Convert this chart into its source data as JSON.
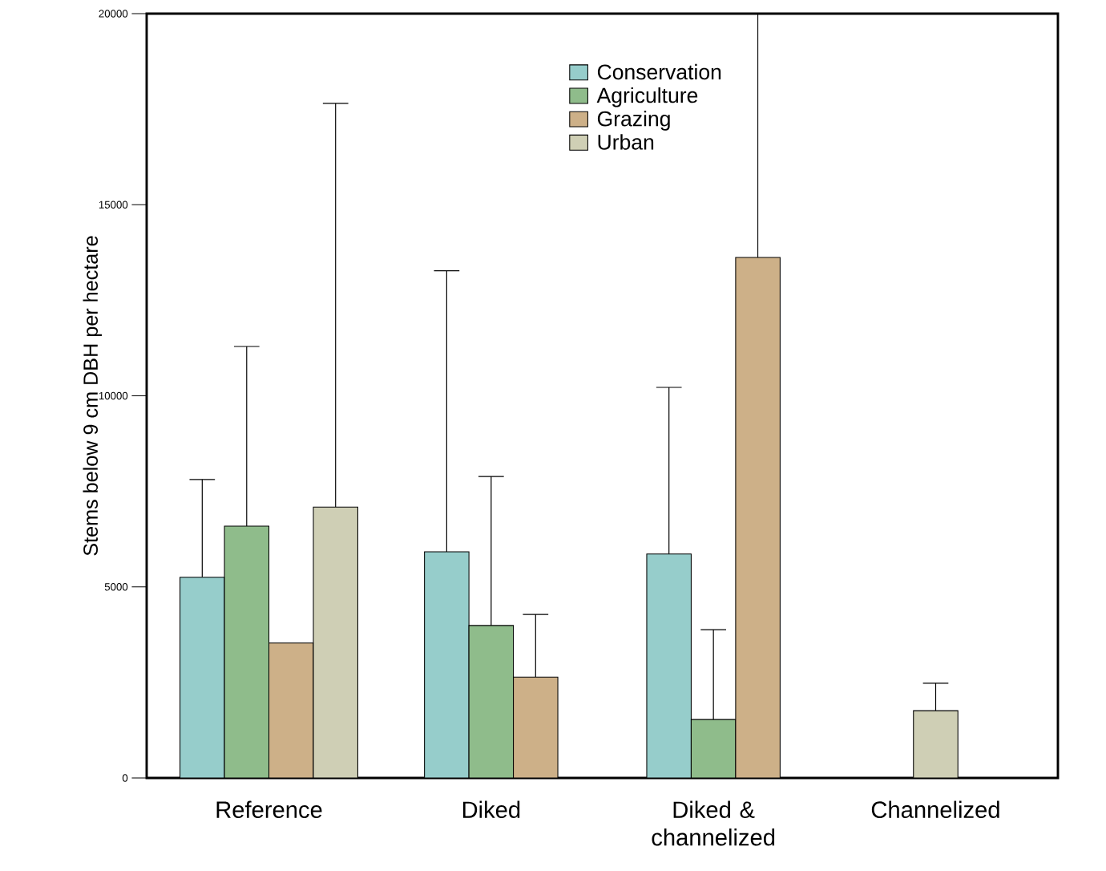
{
  "chart_data": {
    "type": "bar",
    "ylabel": "Stems below 9 cm DBH per hectare",
    "categories": [
      "Reference",
      "Diked",
      "Diked & channelized",
      "Channelized"
    ],
    "series": [
      {
        "name": "Conservation",
        "color": "#96cdcb",
        "values": [
          5250,
          5920,
          5860,
          null
        ],
        "errors": [
          [
            5250,
            7810
          ],
          [
            5920,
            13270
          ],
          [
            5860,
            10220
          ],
          null
        ]
      },
      {
        "name": "Agriculture",
        "color": "#8fbc8b",
        "values": [
          6590,
          3990,
          1530,
          null
        ],
        "errors": [
          [
            6590,
            11290
          ],
          [
            3990,
            7890
          ],
          [
            1530,
            3880
          ],
          null
        ]
      },
      {
        "name": "Grazing",
        "color": "#cdb088",
        "values": [
          3530,
          2640,
          13620,
          null
        ],
        "errors": [
          null,
          [
            2640,
            4280
          ],
          [
            13620,
            20000
          ],
          null
        ]
      },
      {
        "name": "Urban",
        "color": "#cfcfb5",
        "values": [
          7090,
          null,
          null,
          1760
        ],
        "errors": [
          [
            7090,
            17650
          ],
          null,
          null,
          [
            1760,
            2480
          ]
        ]
      }
    ],
    "ylim": [
      0,
      20000
    ],
    "yticks": [
      0,
      5000,
      10000,
      15000,
      20000
    ],
    "legend": "top",
    "grid": false
  }
}
